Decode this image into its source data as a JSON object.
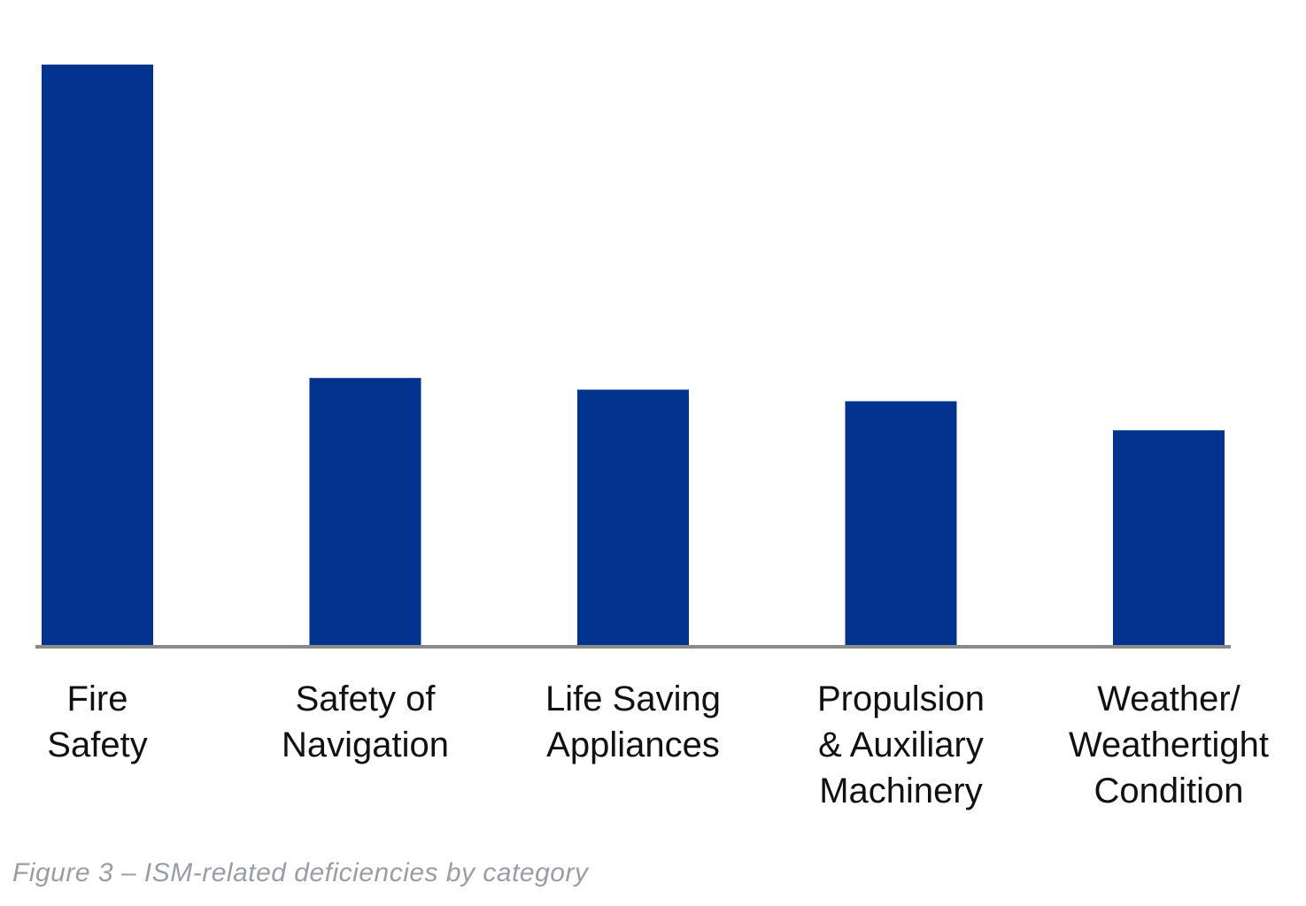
{
  "chart_data": {
    "type": "bar",
    "categories": [
      [
        "Fire",
        "Safety"
      ],
      [
        "Safety of",
        "Navigation"
      ],
      [
        "Life Saving",
        "Appliances"
      ],
      [
        "Propulsion",
        "& Auxiliary",
        "Machinery"
      ],
      [
        "Weather/",
        "Weathertight",
        "Condition"
      ]
    ],
    "values": [
      100,
      46,
      44,
      42,
      37
    ],
    "ylim": [
      0,
      100
    ],
    "bar_color": "#02348f",
    "axis_color": "#8a8a8a",
    "grid": false,
    "legend": "none",
    "caption": "Figure 3 – ISM-related deficiencies by category"
  }
}
